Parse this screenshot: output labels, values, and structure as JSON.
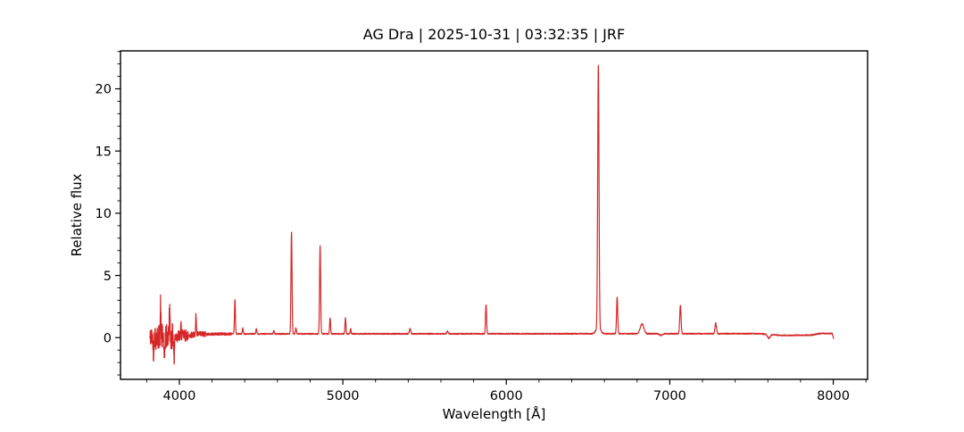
{
  "page": {
    "background": "#ffffff",
    "text_color": "#000000"
  },
  "chart_data": {
    "type": "line",
    "title": "AG Dra | 2025-10-31 | 03:32:35 | JRF",
    "xlabel": "Wavelength [Å]",
    "ylabel": "Relative flux",
    "line_color": "#d62728",
    "axis_color": "#000000",
    "grid": false,
    "xlim": [
      3640,
      8210
    ],
    "ylim": [
      -3.35,
      23.05
    ],
    "x_major_ticks": [
      4000,
      5000,
      6000,
      7000,
      8000
    ],
    "x_minor_step": 200,
    "y_major_ticks": [
      0,
      5,
      10,
      15,
      20
    ],
    "y_minor_step": 1,
    "wavelength_range": [
      3820,
      8003
    ],
    "sample_step": 1,
    "noise_seed": 42,
    "continuum": [
      [
        3820,
        0.0
      ],
      [
        3870,
        0.04
      ],
      [
        3960,
        0.08
      ],
      [
        4100,
        0.26
      ],
      [
        4250,
        0.3
      ],
      [
        5500,
        0.31
      ],
      [
        7550,
        0.32
      ],
      [
        7630,
        0.24
      ],
      [
        7680,
        0.18
      ],
      [
        7860,
        0.2
      ],
      [
        7925,
        0.34
      ],
      [
        7993,
        0.33
      ],
      [
        8003,
        -0.1
      ]
    ],
    "noise_bands": [
      [
        3820,
        3850,
        0.8
      ],
      [
        3850,
        3975,
        1.05
      ],
      [
        3975,
        4055,
        0.5
      ],
      [
        4055,
        4160,
        0.25
      ],
      [
        4160,
        4320,
        0.11
      ],
      [
        4320,
        8003,
        0.045
      ]
    ],
    "emission_lines": [
      {
        "wavelength": 3885,
        "peak": 2.55,
        "sigma": 2.0
      },
      {
        "wavelength": 3940,
        "peak": 2.35,
        "sigma": 2.2
      },
      {
        "wavelength": 4010,
        "peak": 0.8,
        "sigma": 2.0
      },
      {
        "wavelength": 4102,
        "peak": 1.6,
        "sigma": 2.2
      },
      {
        "wavelength": 4340,
        "peak": 2.75,
        "sigma": 2.8
      },
      {
        "wavelength": 4388,
        "peak": 0.45,
        "sigma": 2.8
      },
      {
        "wavelength": 4471,
        "peak": 0.4,
        "sigma": 2.8
      },
      {
        "wavelength": 4578,
        "peak": 0.25,
        "sigma": 3.0
      },
      {
        "wavelength": 4686,
        "peak": 8.2,
        "sigma": 3.2
      },
      {
        "wavelength": 4713,
        "peak": 0.5,
        "sigma": 3.0
      },
      {
        "wavelength": 4861,
        "peak": 7.1,
        "sigma": 3.2
      },
      {
        "wavelength": 4922,
        "peak": 1.3,
        "sigma": 2.8
      },
      {
        "wavelength": 5016,
        "peak": 1.3,
        "sigma": 2.8
      },
      {
        "wavelength": 5048,
        "peak": 0.4,
        "sigma": 2.5
      },
      {
        "wavelength": 5411,
        "peak": 0.42,
        "sigma": 4.0
      },
      {
        "wavelength": 5640,
        "peak": 0.2,
        "sigma": 4.0
      },
      {
        "wavelength": 5876,
        "peak": 2.35,
        "sigma": 3.2
      },
      {
        "wavelength": 6563,
        "peak": 21.0,
        "sigma": 4.0
      },
      {
        "wavelength": 6563,
        "peak": 0.55,
        "sigma": 13.0
      },
      {
        "wavelength": 6678,
        "peak": 2.95,
        "sigma": 3.5
      },
      {
        "wavelength": 6830,
        "peak": 0.78,
        "sigma": 11.0
      },
      {
        "wavelength": 7065,
        "peak": 2.3,
        "sigma": 4.0
      },
      {
        "wavelength": 7281,
        "peak": 0.85,
        "sigma": 4.5
      }
    ],
    "absorption_features": [
      {
        "wavelength": 3842,
        "depth": 1.3,
        "sigma": 2.0
      },
      {
        "wavelength": 3908,
        "depth": 2.3,
        "sigma": 2.2
      },
      {
        "wavelength": 3968,
        "depth": 2.0,
        "sigma": 2.0
      },
      {
        "wavelength": 6945,
        "depth": 0.13,
        "sigma": 9.0
      },
      {
        "wavelength": 7606,
        "depth": 0.3,
        "sigma": 8.0
      }
    ]
  }
}
